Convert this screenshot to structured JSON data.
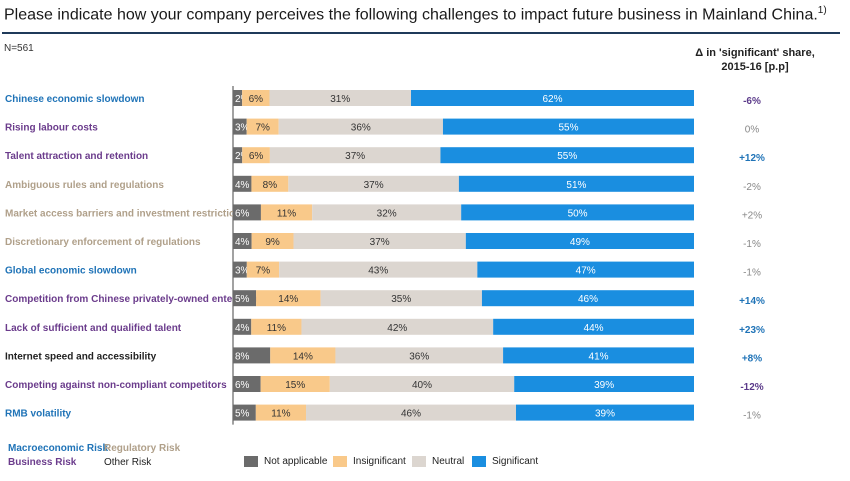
{
  "title": "Please indicate how your company perceives the following challenges to impact future business in Mainland China.",
  "title_footnote": "1)",
  "n_label": "N=561",
  "delta_header_line1": "Δ in 'significant' share,",
  "delta_header_line2": "2015-16 [p.p]",
  "risk_legend": {
    "macro": "Macroeconomic Risk",
    "regulatory": "Regulatory Risk",
    "business": "Business Risk",
    "other": "Other Risk"
  },
  "colors": {
    "not_applicable": "#6b6b6b",
    "insignificant": "#f9c98a",
    "neutral": "#dcd6d0",
    "significant": "#1a8ee0",
    "macro": "#1f73b7",
    "regulatory": "#b0a08a",
    "business": "#6b3c8c",
    "other": "#222222",
    "delta_positive": "#1f73b7",
    "delta_negative": "#5b3a8a",
    "delta_neutral": "#888888"
  },
  "chart_data": {
    "type": "bar",
    "orientation": "horizontal",
    "stacked": true,
    "normalized": true,
    "categories": [
      "Chinese economic slowdown",
      "Rising labour costs",
      "Talent attraction and retention",
      "Ambiguous rules and regulations",
      "Market access barriers and investment restrictions",
      "Discretionary enforcement of regulations",
      "Global economic slowdown",
      "Competition from Chinese privately-owned enterprises",
      "Lack of sufficient and qualified talent",
      "Internet speed and accessibility",
      "Competing against non-compliant competitors",
      "RMB volatility"
    ],
    "category_risk_type": [
      "macro",
      "business",
      "business",
      "regulatory",
      "regulatory",
      "regulatory",
      "macro",
      "business",
      "business",
      "other",
      "business",
      "macro"
    ],
    "series": [
      {
        "name": "Not applicable",
        "values": [
          2,
          3,
          2,
          4,
          6,
          4,
          3,
          5,
          4,
          8,
          6,
          5
        ],
        "labels": [
          "2%",
          "3%",
          "2%",
          "4%",
          "6%",
          "4%",
          "3%",
          "5%",
          "4%",
          "8%",
          "6%",
          "5%"
        ]
      },
      {
        "name": "Insignificant",
        "values": [
          6,
          7,
          6,
          8,
          11,
          9,
          7,
          14,
          11,
          14,
          15,
          11
        ],
        "labels": [
          "6%",
          "7%",
          "6%",
          "8%",
          "11%",
          "9%",
          "7%",
          "14%",
          "11%",
          "14%",
          "15%",
          "11%"
        ]
      },
      {
        "name": "Neutral",
        "values": [
          31,
          36,
          37,
          37,
          32,
          37,
          43,
          35,
          42,
          36,
          40,
          46
        ],
        "labels": [
          "31%",
          "36%",
          "37%",
          "37%",
          "32%",
          "37%",
          "43%",
          "35%",
          "42%",
          "36%",
          "40%",
          "46%"
        ]
      },
      {
        "name": "Significant",
        "values": [
          62,
          55,
          55,
          51,
          50,
          49,
          47,
          46,
          44,
          41,
          39,
          39
        ],
        "labels": [
          "62%",
          "55%",
          "55%",
          "51%",
          "50%",
          "49%",
          "47%",
          "46%",
          "44%",
          "41%",
          "39%",
          "39%"
        ]
      }
    ],
    "delta_significant": [
      "-6%",
      "0%",
      "+12%",
      "-2%",
      "+2%",
      "-1%",
      "-1%",
      "+14%",
      "+23%",
      "+8%",
      "-12%",
      "-1%"
    ],
    "delta_bold": [
      true,
      false,
      true,
      false,
      false,
      false,
      false,
      true,
      true,
      true,
      true,
      false
    ],
    "xlim": [
      0,
      100
    ],
    "legend_position": "bottom"
  }
}
